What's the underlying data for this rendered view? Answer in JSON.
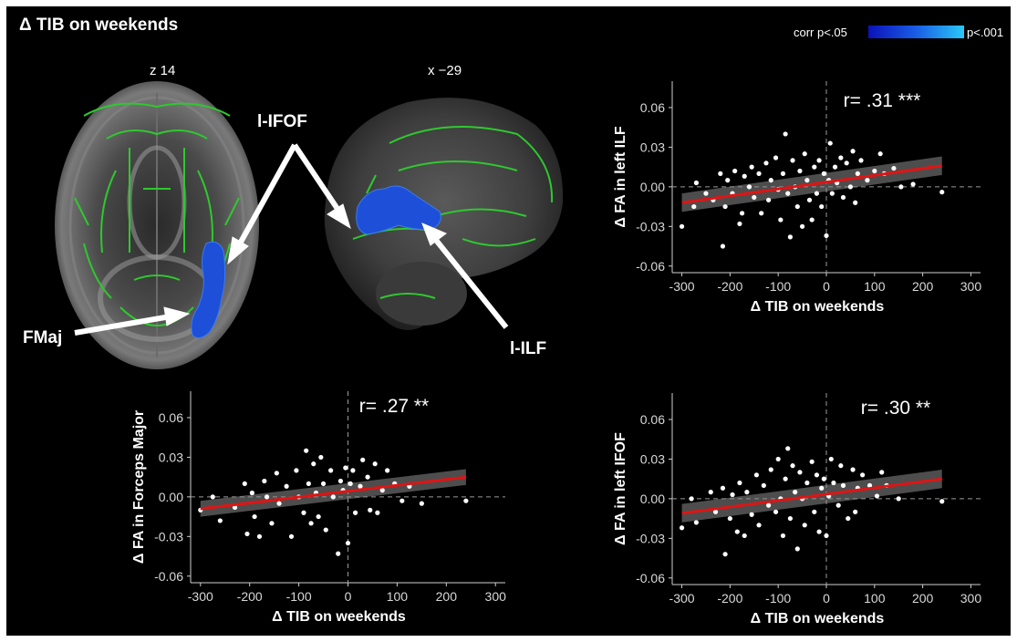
{
  "figure": {
    "title": "Δ TIB on weekends",
    "colorbar": {
      "left_label": "corr p<.05",
      "right_label": "p<.001",
      "colors": [
        "#0b12b8",
        "#29c8f5"
      ]
    },
    "brain": {
      "axial_label": "z 14",
      "sagittal_label": "x −29",
      "tract_labels": {
        "ifof": "l-IFOF",
        "fmaj": "FMaj",
        "ilf": "l-ILF"
      },
      "skeleton_color": "#2fc82f",
      "cluster_color": "#1e4fd8"
    }
  },
  "chart_data": [
    {
      "type": "scatter",
      "id": "ilf",
      "xlabel": "Δ TIB on weekends",
      "ylabel": "Δ FA in left ILF",
      "annotation": "r= .31 ***",
      "xlim": [
        -320,
        320
      ],
      "ylim": [
        -0.065,
        0.08
      ],
      "xticks": [
        -300,
        -200,
        -100,
        0,
        100,
        200,
        300
      ],
      "yticks": [
        -0.06,
        -0.03,
        0.0,
        0.03,
        0.06
      ],
      "ytick_labels": [
        "-0.06",
        "-0.03",
        "0.00",
        "0.03",
        "0.06"
      ],
      "fit": {
        "x": [
          -300,
          240
        ],
        "y": [
          -0.012,
          0.016
        ],
        "ci_halfwidth": [
          0.007,
          0.007
        ]
      },
      "points": [
        [
          -300,
          -0.03
        ],
        [
          -275,
          -0.015
        ],
        [
          -270,
          0.003
        ],
        [
          -250,
          -0.005
        ],
        [
          -235,
          -0.01
        ],
        [
          -220,
          0.01
        ],
        [
          -215,
          -0.045
        ],
        [
          -210,
          -0.015
        ],
        [
          -205,
          0.005
        ],
        [
          -195,
          -0.005
        ],
        [
          -190,
          0.012
        ],
        [
          -180,
          -0.028
        ],
        [
          -175,
          -0.02
        ],
        [
          -170,
          0.008
        ],
        [
          -160,
          0.0
        ],
        [
          -155,
          0.015
        ],
        [
          -150,
          -0.008
        ],
        [
          -140,
          0.01
        ],
        [
          -135,
          -0.02
        ],
        [
          -125,
          0.018
        ],
        [
          -120,
          -0.01
        ],
        [
          -115,
          0.005
        ],
        [
          -105,
          0.022
        ],
        [
          -100,
          -0.002
        ],
        [
          -95,
          -0.025
        ],
        [
          -90,
          0.01
        ],
        [
          -85,
          0.04
        ],
        [
          -80,
          -0.005
        ],
        [
          -75,
          -0.038
        ],
        [
          -70,
          0.02
        ],
        [
          -65,
          0.0
        ],
        [
          -60,
          -0.015
        ],
        [
          -55,
          0.012
        ],
        [
          -50,
          -0.03
        ],
        [
          -45,
          0.025
        ],
        [
          -40,
          0.005
        ],
        [
          -35,
          -0.01
        ],
        [
          -30,
          -0.025
        ],
        [
          -25,
          0.015
        ],
        [
          -20,
          -0.005
        ],
        [
          -15,
          0.02
        ],
        [
          -10,
          -0.015
        ],
        [
          -5,
          0.01
        ],
        [
          0,
          -0.037
        ],
        [
          5,
          0.005
        ],
        [
          8,
          0.033
        ],
        [
          12,
          -0.005
        ],
        [
          18,
          0.015
        ],
        [
          22,
          0.003
        ],
        [
          30,
          0.022
        ],
        [
          35,
          -0.008
        ],
        [
          42,
          0.018
        ],
        [
          50,
          0.0
        ],
        [
          55,
          0.027
        ],
        [
          60,
          -0.012
        ],
        [
          65,
          0.01
        ],
        [
          72,
          0.02
        ],
        [
          85,
          0.005
        ],
        [
          100,
          0.012
        ],
        [
          112,
          0.025
        ],
        [
          120,
          0.01
        ],
        [
          140,
          0.014
        ],
        [
          155,
          0.0
        ],
        [
          180,
          0.002
        ],
        [
          240,
          -0.004
        ]
      ]
    },
    {
      "type": "scatter",
      "id": "fmaj",
      "xlabel": "Δ TIB on weekends",
      "ylabel": "Δ FA in Forceps Major",
      "annotation": "r= .27 **",
      "xlim": [
        -320,
        320
      ],
      "ylim": [
        -0.065,
        0.08
      ],
      "xticks": [
        -300,
        -200,
        -100,
        0,
        100,
        200,
        300
      ],
      "yticks": [
        -0.06,
        -0.03,
        0.0,
        0.03,
        0.06
      ],
      "ytick_labels": [
        "-0.06",
        "-0.03",
        "0.00",
        "0.03",
        "0.06"
      ],
      "fit": {
        "x": [
          -300,
          240
        ],
        "y": [
          -0.009,
          0.015
        ],
        "ci_halfwidth": [
          0.006,
          0.006
        ]
      },
      "points": [
        [
          -300,
          -0.01
        ],
        [
          -275,
          0.0
        ],
        [
          -260,
          -0.018
        ],
        [
          -230,
          -0.008
        ],
        [
          -210,
          0.01
        ],
        [
          -205,
          -0.028
        ],
        [
          -195,
          0.003
        ],
        [
          -190,
          -0.015
        ],
        [
          -180,
          -0.03
        ],
        [
          -170,
          0.012
        ],
        [
          -165,
          0.0
        ],
        [
          -155,
          -0.02
        ],
        [
          -145,
          0.018
        ],
        [
          -140,
          -0.005
        ],
        [
          -125,
          0.008
        ],
        [
          -115,
          -0.03
        ],
        [
          -105,
          0.02
        ],
        [
          -100,
          0.0
        ],
        [
          -90,
          -0.012
        ],
        [
          -85,
          0.035
        ],
        [
          -80,
          0.01
        ],
        [
          -75,
          -0.02
        ],
        [
          -70,
          0.025
        ],
        [
          -65,
          0.003
        ],
        [
          -60,
          -0.015
        ],
        [
          -55,
          0.03
        ],
        [
          -50,
          0.01
        ],
        [
          -45,
          -0.025
        ],
        [
          -35,
          0.02
        ],
        [
          -30,
          0.0
        ],
        [
          -20,
          -0.043
        ],
        [
          -15,
          0.012
        ],
        [
          -10,
          0.005
        ],
        [
          -5,
          0.022
        ],
        [
          0,
          -0.035
        ],
        [
          5,
          0.01
        ],
        [
          10,
          0.02
        ],
        [
          15,
          -0.012
        ],
        [
          25,
          0.008
        ],
        [
          30,
          0.028
        ],
        [
          40,
          0.015
        ],
        [
          45,
          -0.01
        ],
        [
          55,
          0.025
        ],
        [
          60,
          -0.012
        ],
        [
          70,
          0.005
        ],
        [
          80,
          0.02
        ],
        [
          95,
          0.01
        ],
        [
          110,
          -0.003
        ],
        [
          125,
          0.008
        ],
        [
          150,
          -0.005
        ],
        [
          240,
          -0.003
        ]
      ]
    },
    {
      "type": "scatter",
      "id": "ifof",
      "xlabel": "Δ TIB on weekends",
      "ylabel": "Δ FA in left IFOF",
      "annotation": "r= .30 **",
      "xlim": [
        -320,
        320
      ],
      "ylim": [
        -0.065,
        0.08
      ],
      "xticks": [
        -300,
        -200,
        -100,
        0,
        100,
        200,
        300
      ],
      "yticks": [
        -0.06,
        -0.03,
        0.0,
        0.03,
        0.06
      ],
      "ytick_labels": [
        "-0.06",
        "-0.03",
        "0.00",
        "0.03",
        "0.06"
      ],
      "fit": {
        "x": [
          -300,
          240
        ],
        "y": [
          -0.011,
          0.015
        ],
        "ci_halfwidth": [
          0.007,
          0.007
        ]
      },
      "points": [
        [
          -300,
          -0.022
        ],
        [
          -280,
          0.0
        ],
        [
          -270,
          -0.018
        ],
        [
          -240,
          0.005
        ],
        [
          -230,
          -0.01
        ],
        [
          -215,
          0.008
        ],
        [
          -210,
          -0.042
        ],
        [
          -200,
          -0.015
        ],
        [
          -195,
          0.003
        ],
        [
          -185,
          -0.025
        ],
        [
          -180,
          0.012
        ],
        [
          -170,
          -0.028
        ],
        [
          -165,
          0.005
        ],
        [
          -155,
          -0.012
        ],
        [
          -145,
          0.018
        ],
        [
          -140,
          -0.02
        ],
        [
          -130,
          0.01
        ],
        [
          -120,
          -0.005
        ],
        [
          -115,
          0.022
        ],
        [
          -105,
          -0.01
        ],
        [
          -100,
          0.03
        ],
        [
          -95,
          0.0
        ],
        [
          -90,
          -0.028
        ],
        [
          -85,
          0.015
        ],
        [
          -80,
          0.038
        ],
        [
          -75,
          -0.015
        ],
        [
          -70,
          0.025
        ],
        [
          -65,
          0.005
        ],
        [
          -60,
          -0.038
        ],
        [
          -55,
          0.02
        ],
        [
          -50,
          0.0
        ],
        [
          -45,
          -0.02
        ],
        [
          -40,
          0.012
        ],
        [
          -30,
          0.028
        ],
        [
          -25,
          -0.01
        ],
        [
          -20,
          0.018
        ],
        [
          -15,
          -0.025
        ],
        [
          -10,
          0.008
        ],
        [
          -5,
          0.015
        ],
        [
          0,
          -0.028
        ],
        [
          5,
          0.002
        ],
        [
          10,
          0.03
        ],
        [
          15,
          0.012
        ],
        [
          25,
          -0.005
        ],
        [
          30,
          0.025
        ],
        [
          35,
          0.01
        ],
        [
          45,
          -0.015
        ],
        [
          55,
          0.022
        ],
        [
          60,
          -0.01
        ],
        [
          65,
          0.008
        ],
        [
          75,
          0.018
        ],
        [
          90,
          0.01
        ],
        [
          105,
          0.002
        ],
        [
          115,
          0.02
        ],
        [
          125,
          0.01
        ],
        [
          150,
          0.0
        ],
        [
          240,
          -0.002
        ]
      ]
    }
  ]
}
